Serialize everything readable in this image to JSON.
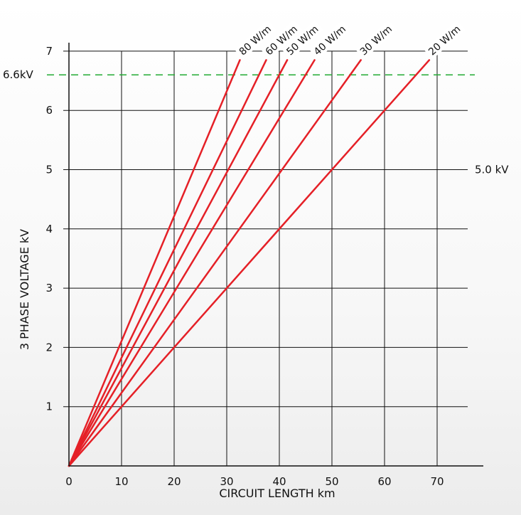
{
  "chart_data": {
    "type": "line",
    "title": "",
    "xlabel": "CIRCUIT LENGTH km",
    "ylabel": "3 PHASE VOLTAGE kV",
    "xlim": [
      0,
      76
    ],
    "ylim": [
      0,
      7
    ],
    "x_ticks": [
      "0",
      "10",
      "20",
      "30",
      "40",
      "50",
      "60",
      "70"
    ],
    "y_ticks": [
      "1",
      "2",
      "3",
      "4",
      "5",
      "6",
      "7"
    ],
    "grid": true,
    "series": [
      {
        "name": "80 W/m",
        "x": [
          0,
          32.5
        ],
        "y": [
          0,
          6.85
        ]
      },
      {
        "name": "60 W/m",
        "x": [
          0,
          37.5
        ],
        "y": [
          0,
          6.85
        ]
      },
      {
        "name": "50 W/m",
        "x": [
          0,
          41.5
        ],
        "y": [
          0,
          6.85
        ]
      },
      {
        "name": "40 W/m",
        "x": [
          0,
          46.7
        ],
        "y": [
          0,
          6.85
        ]
      },
      {
        "name": "30 W/m",
        "x": [
          0,
          55.5
        ],
        "y": [
          0,
          6.85
        ]
      },
      {
        "name": "20 W/m",
        "x": [
          0,
          68.5
        ],
        "y": [
          0,
          6.85
        ]
      }
    ],
    "reference_lines": [
      {
        "label": "6.6kV",
        "y": 6.6,
        "style": "dashed",
        "color": "#22aa33"
      },
      {
        "label": "5.0 kV",
        "y": 5.0,
        "style": "solid",
        "color": "#111111"
      }
    ],
    "line_color": "#e52027"
  }
}
